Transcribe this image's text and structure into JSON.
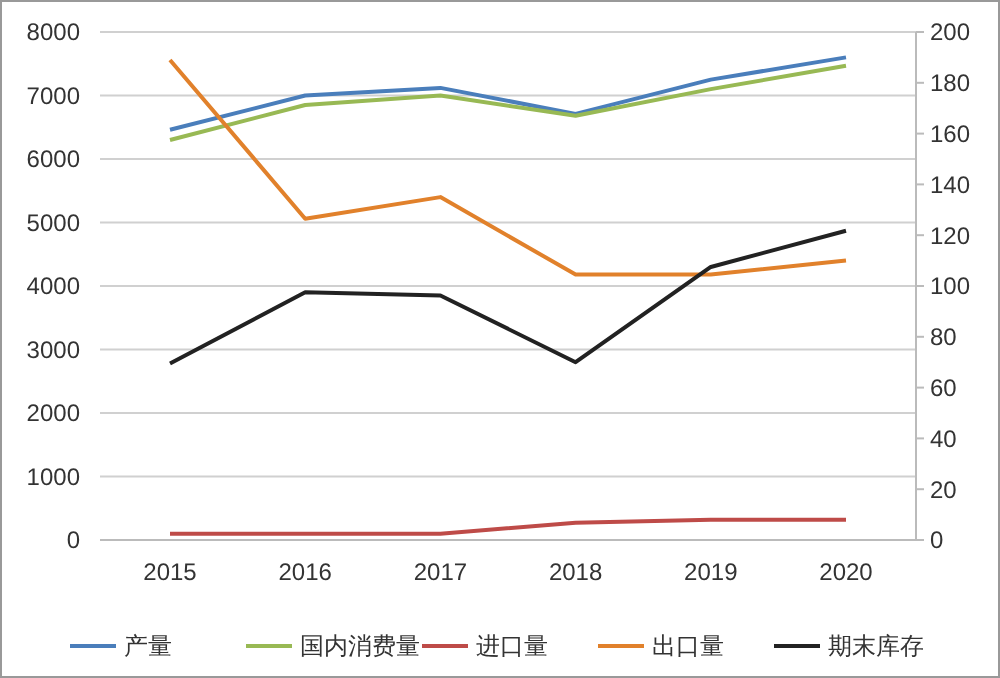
{
  "chart_data": {
    "type": "line",
    "categories": [
      "2015",
      "2016",
      "2017",
      "2018",
      "2019",
      "2020"
    ],
    "series": [
      {
        "name": "产量",
        "color": "#4a7ebb",
        "values": [
          6460,
          7000,
          7120,
          6710,
          7250,
          7600
        ]
      },
      {
        "name": "国内消费量",
        "color": "#98b954",
        "values": [
          6300,
          6850,
          7000,
          6680,
          7100,
          7470
        ]
      },
      {
        "name": "进口量",
        "color": "#be4b48",
        "values": [
          100,
          100,
          100,
          270,
          320,
          320
        ]
      },
      {
        "name": "出口量",
        "color": "#e1812b",
        "values": [
          7560,
          5060,
          5400,
          4180,
          4180,
          4400
        ]
      },
      {
        "name": "期末库存",
        "color": "#222222",
        "values": [
          2780,
          3900,
          3850,
          2800,
          4300,
          4870
        ]
      }
    ],
    "ylim": [
      0,
      8000
    ],
    "yticks": [
      0,
      1000,
      2000,
      3000,
      4000,
      5000,
      6000,
      7000,
      8000
    ],
    "y2lim": [
      0,
      200
    ],
    "y2ticks": [
      0,
      20,
      40,
      60,
      80,
      100,
      120,
      140,
      160,
      180,
      200
    ],
    "grid": "y",
    "legend": "bottom",
    "marker": "none",
    "line_style": "solid"
  }
}
